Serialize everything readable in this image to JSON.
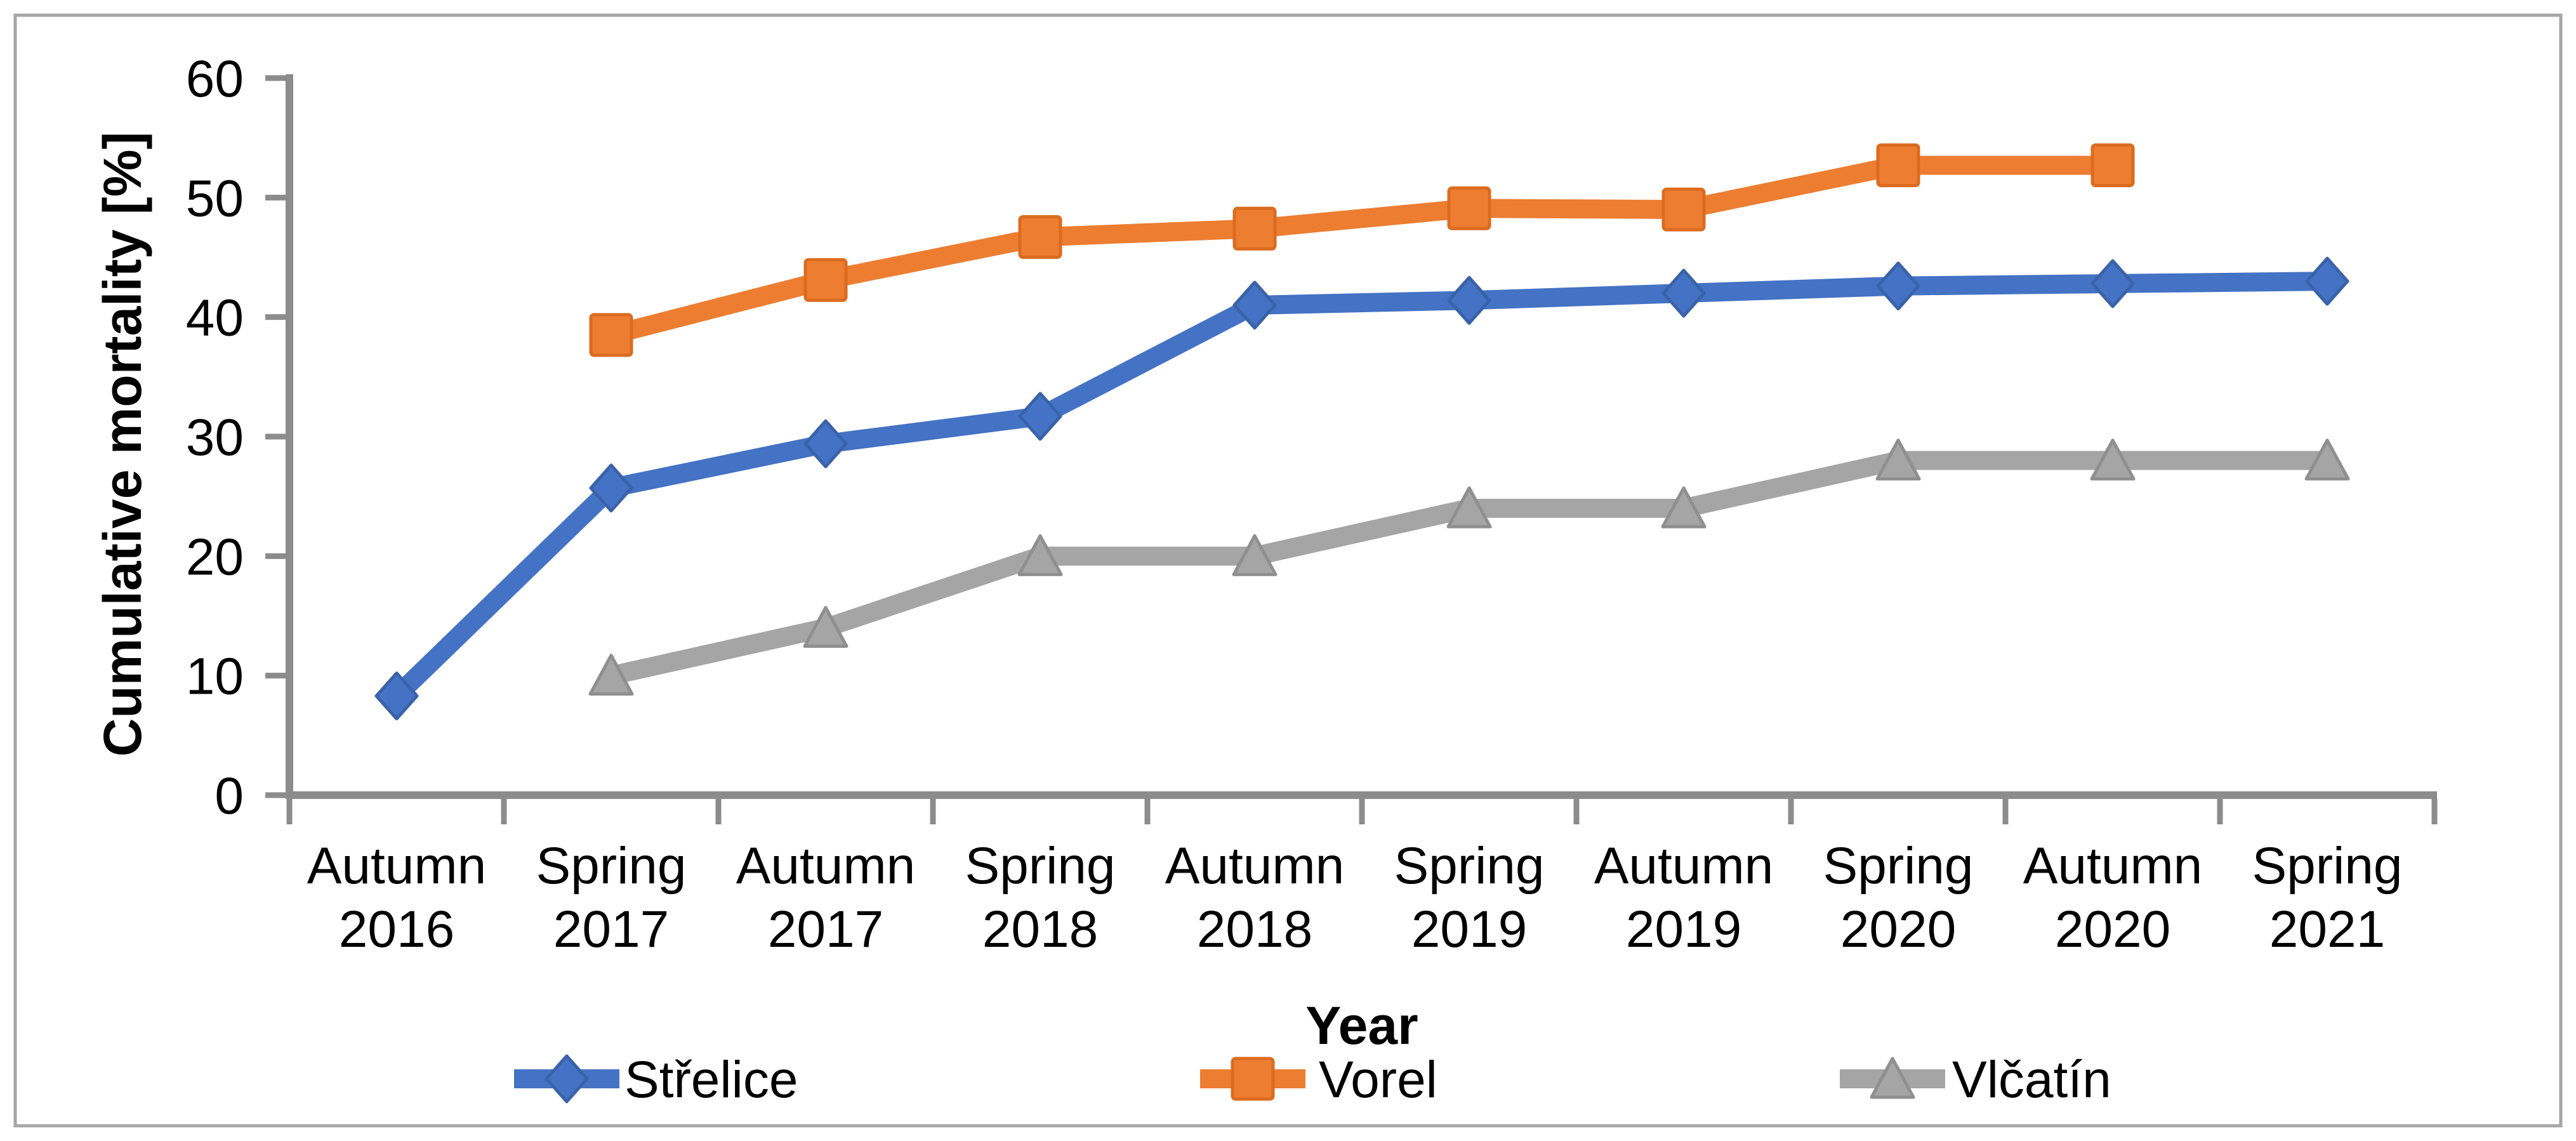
{
  "figure": {
    "background_color": "#FFFFFF",
    "border_color": "#A6A6A6",
    "axis_color": "#8C8C8C"
  },
  "chart_data": {
    "type": "line",
    "title": "",
    "xlabel": "Year",
    "ylabel": "Cumulative mortality  [%]",
    "ylim": [
      0,
      60
    ],
    "yticks": [
      0,
      10,
      20,
      30,
      40,
      50,
      60
    ],
    "grid": false,
    "legend_position": "bottom",
    "categories": [
      "Autumn 2016",
      "Spring 2017",
      "Autumn 2017",
      "Spring 2018",
      "Autumn 2018",
      "Spring 2019",
      "Autumn 2019",
      "Spring 2020",
      "Autumn 2020",
      "Spring 2021"
    ],
    "series": [
      {
        "name": "Střelice",
        "marker": "diamond",
        "color": "#4472C4",
        "edge_color": "#3A62A9",
        "values": [
          8.3,
          25.7,
          29.4,
          31.7,
          41.0,
          41.4,
          42.0,
          42.6,
          42.8,
          43.0
        ]
      },
      {
        "name": "Vorel",
        "marker": "square",
        "color": "#ED7D31",
        "edge_color": "#DC6B1F",
        "values": [
          null,
          38.5,
          43.1,
          46.7,
          47.4,
          49.1,
          49.0,
          52.7,
          52.7,
          null
        ]
      },
      {
        "name": "Vlčatín",
        "marker": "triangle",
        "color": "#A5A5A5",
        "edge_color": "#8F8F8F",
        "values": [
          null,
          10,
          14,
          20,
          20,
          24,
          24,
          28,
          28,
          28
        ]
      }
    ]
  }
}
